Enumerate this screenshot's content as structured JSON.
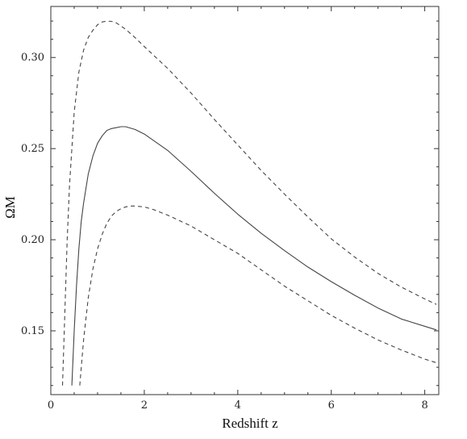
{
  "chart_data": {
    "type": "line",
    "xlabel": "Redshift z",
    "ylabel": "ΩM",
    "xlim": [
      0,
      8.3
    ],
    "ylim": [
      0.115,
      0.328
    ],
    "xticks": [
      0,
      2,
      4,
      6,
      8
    ],
    "xtick_labels": [
      "0",
      "2",
      "4",
      "6",
      "8"
    ],
    "yticks": [
      0.15,
      0.2,
      0.25,
      0.3
    ],
    "ytick_labels": [
      "0.15",
      "0.20",
      "0.25",
      "0.30"
    ],
    "grid": false,
    "frame": true,
    "series": [
      {
        "style": "solid",
        "color": "#444444",
        "x": [
          0.45,
          0.5,
          0.55,
          0.6,
          0.65,
          0.7,
          0.8,
          0.9,
          1.0,
          1.1,
          1.2,
          1.3,
          1.4,
          1.5,
          1.6,
          1.8,
          2.0,
          2.5,
          3.0,
          3.5,
          4.0,
          4.5,
          5.0,
          5.5,
          6.0,
          6.5,
          7.0,
          7.5,
          8.0,
          8.25
        ],
        "y": [
          0.12,
          0.15,
          0.175,
          0.195,
          0.21,
          0.22,
          0.236,
          0.246,
          0.253,
          0.257,
          0.26,
          0.261,
          0.2615,
          0.262,
          0.262,
          0.2605,
          0.258,
          0.249,
          0.2375,
          0.2255,
          0.214,
          0.2035,
          0.194,
          0.185,
          0.177,
          0.1695,
          0.1625,
          0.1565,
          0.1525,
          0.1505
        ]
      },
      {
        "style": "dashed",
        "color": "#444444",
        "x": [
          0.25,
          0.3,
          0.35,
          0.4,
          0.5,
          0.6,
          0.7,
          0.8,
          0.9,
          1.0,
          1.1,
          1.2,
          1.3,
          1.4,
          1.6,
          1.8,
          2.0,
          2.5,
          3.0,
          3.5,
          4.0,
          4.5,
          5.0,
          5.5,
          6.0,
          6.5,
          7.0,
          7.5,
          8.0,
          8.25
        ],
        "y": [
          0.12,
          0.16,
          0.2,
          0.23,
          0.27,
          0.292,
          0.304,
          0.311,
          0.315,
          0.318,
          0.3195,
          0.32,
          0.3198,
          0.319,
          0.3155,
          0.311,
          0.306,
          0.294,
          0.2805,
          0.266,
          0.252,
          0.238,
          0.225,
          0.2125,
          0.2005,
          0.1905,
          0.1815,
          0.174,
          0.1675,
          0.1645
        ]
      },
      {
        "style": "dashed",
        "color": "#444444",
        "x": [
          0.62,
          0.7,
          0.8,
          0.9,
          1.0,
          1.1,
          1.2,
          1.3,
          1.4,
          1.5,
          1.6,
          1.7,
          1.8,
          2.0,
          2.2,
          2.5,
          3.0,
          3.5,
          4.0,
          4.5,
          5.0,
          5.5,
          6.0,
          6.5,
          7.0,
          7.5,
          8.0,
          8.25
        ],
        "y": [
          0.12,
          0.145,
          0.168,
          0.184,
          0.195,
          0.203,
          0.209,
          0.213,
          0.2155,
          0.217,
          0.218,
          0.2185,
          0.2185,
          0.218,
          0.2165,
          0.2135,
          0.2075,
          0.2,
          0.1925,
          0.1835,
          0.1745,
          0.1665,
          0.1585,
          0.1515,
          0.145,
          0.1395,
          0.1345,
          0.1325
        ]
      }
    ]
  }
}
